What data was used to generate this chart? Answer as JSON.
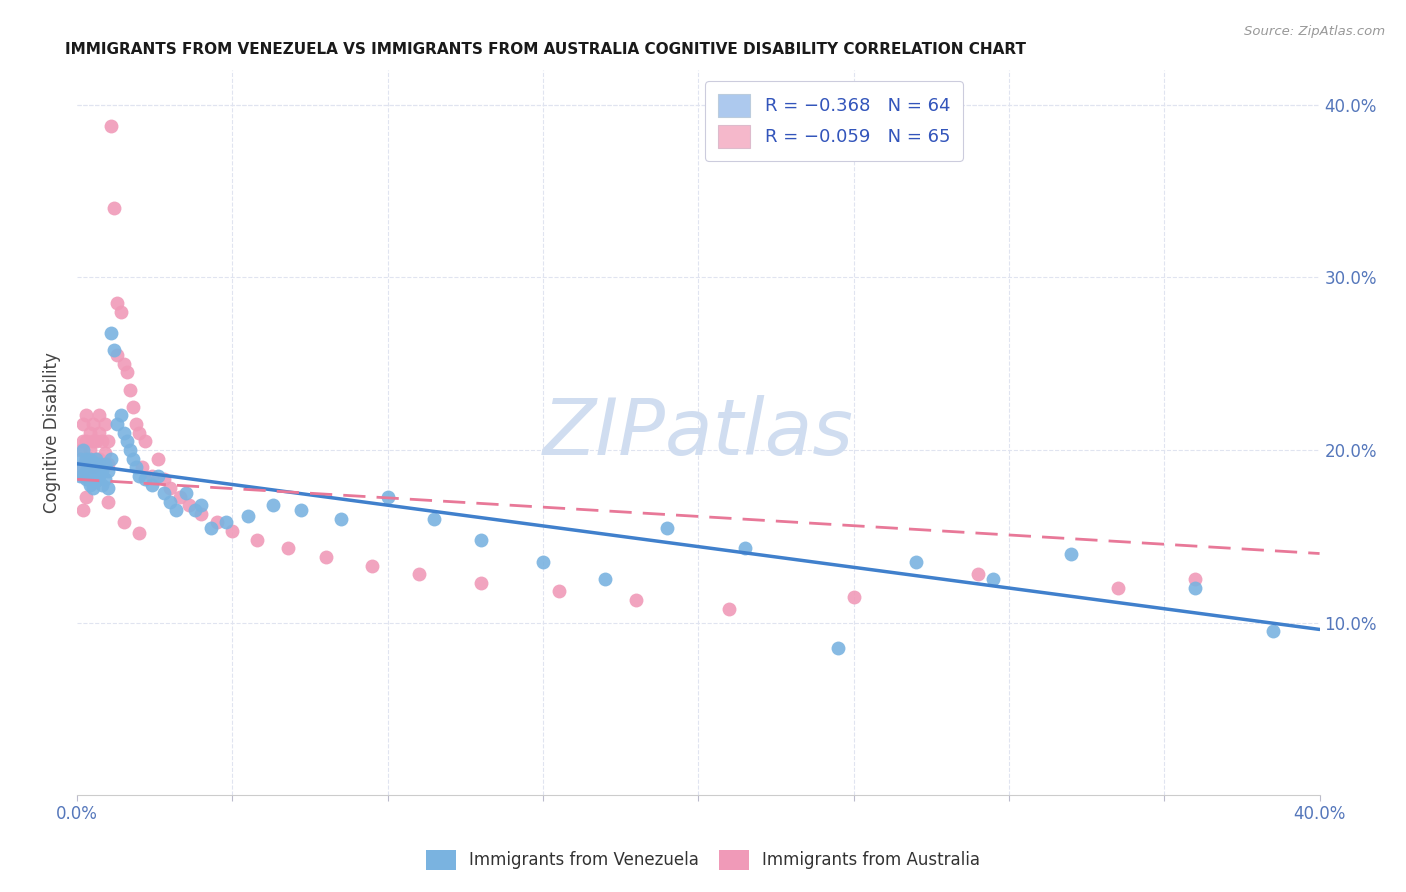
{
  "title": "IMMIGRANTS FROM VENEZUELA VS IMMIGRANTS FROM AUSTRALIA COGNITIVE DISABILITY CORRELATION CHART",
  "source": "Source: ZipAtlas.com",
  "ylabel": "Cognitive Disability",
  "xlim": [
    0.0,
    0.4
  ],
  "ylim": [
    0.0,
    0.42
  ],
  "ylabel_right_ticks": [
    "10.0%",
    "20.0%",
    "30.0%",
    "40.0%"
  ],
  "ylabel_right_vals": [
    0.1,
    0.2,
    0.3,
    0.4
  ],
  "legend_entry1_label": "R = −0.368   N = 64",
  "legend_entry2_label": "R = −0.059   N = 65",
  "legend_entry1_color": "#adc9ee",
  "legend_entry2_color": "#f5b8cb",
  "legend_label1": "Immigrants from Venezuela",
  "legend_label2": "Immigrants from Australia",
  "color_venezuela": "#7ab3e0",
  "color_australia": "#f09ab8",
  "line_color_venezuela": "#4080cc",
  "line_color_australia": "#e87898",
  "background_color": "#ffffff",
  "grid_color": "#e0e4f0",
  "watermark": "ZIPatlas",
  "watermark_color": "#d0ddf0",
  "ven_line_start_y": 0.192,
  "ven_line_end_y": 0.096,
  "aus_line_start_y": 0.183,
  "aus_line_end_y": 0.14,
  "venezuela_x": [
    0.001,
    0.001,
    0.002,
    0.002,
    0.002,
    0.003,
    0.003,
    0.003,
    0.004,
    0.004,
    0.004,
    0.005,
    0.005,
    0.005,
    0.006,
    0.006,
    0.006,
    0.007,
    0.007,
    0.008,
    0.008,
    0.009,
    0.009,
    0.01,
    0.01,
    0.011,
    0.011,
    0.012,
    0.013,
    0.014,
    0.015,
    0.016,
    0.017,
    0.018,
    0.019,
    0.02,
    0.022,
    0.024,
    0.026,
    0.028,
    0.03,
    0.032,
    0.035,
    0.038,
    0.04,
    0.043,
    0.048,
    0.055,
    0.063,
    0.072,
    0.085,
    0.1,
    0.115,
    0.13,
    0.15,
    0.17,
    0.19,
    0.215,
    0.245,
    0.27,
    0.295,
    0.32,
    0.36,
    0.385
  ],
  "venezuela_y": [
    0.185,
    0.195,
    0.185,
    0.19,
    0.2,
    0.183,
    0.188,
    0.195,
    0.18,
    0.188,
    0.195,
    0.178,
    0.185,
    0.193,
    0.182,
    0.188,
    0.195,
    0.185,
    0.192,
    0.18,
    0.188,
    0.183,
    0.192,
    0.178,
    0.188,
    0.195,
    0.268,
    0.258,
    0.215,
    0.22,
    0.21,
    0.205,
    0.2,
    0.195,
    0.19,
    0.185,
    0.183,
    0.18,
    0.185,
    0.175,
    0.17,
    0.165,
    0.175,
    0.165,
    0.168,
    0.155,
    0.158,
    0.162,
    0.168,
    0.165,
    0.16,
    0.173,
    0.16,
    0.148,
    0.135,
    0.125,
    0.155,
    0.143,
    0.085,
    0.135,
    0.125,
    0.14,
    0.12,
    0.095
  ],
  "australia_x": [
    0.001,
    0.001,
    0.002,
    0.002,
    0.002,
    0.003,
    0.003,
    0.003,
    0.004,
    0.004,
    0.004,
    0.005,
    0.005,
    0.005,
    0.006,
    0.006,
    0.007,
    0.007,
    0.007,
    0.008,
    0.008,
    0.009,
    0.009,
    0.01,
    0.01,
    0.011,
    0.012,
    0.013,
    0.013,
    0.014,
    0.015,
    0.016,
    0.017,
    0.018,
    0.019,
    0.02,
    0.021,
    0.022,
    0.024,
    0.026,
    0.028,
    0.03,
    0.033,
    0.036,
    0.04,
    0.045,
    0.05,
    0.058,
    0.068,
    0.08,
    0.095,
    0.11,
    0.13,
    0.155,
    0.18,
    0.21,
    0.25,
    0.29,
    0.335,
    0.36,
    0.002,
    0.003,
    0.01,
    0.015,
    0.02
  ],
  "australia_y": [
    0.19,
    0.2,
    0.205,
    0.215,
    0.185,
    0.195,
    0.205,
    0.22,
    0.195,
    0.21,
    0.2,
    0.19,
    0.205,
    0.215,
    0.195,
    0.205,
    0.195,
    0.21,
    0.22,
    0.193,
    0.205,
    0.198,
    0.215,
    0.192,
    0.205,
    0.388,
    0.34,
    0.285,
    0.255,
    0.28,
    0.25,
    0.245,
    0.235,
    0.225,
    0.215,
    0.21,
    0.19,
    0.205,
    0.185,
    0.195,
    0.183,
    0.178,
    0.173,
    0.168,
    0.163,
    0.158,
    0.153,
    0.148,
    0.143,
    0.138,
    0.133,
    0.128,
    0.123,
    0.118,
    0.113,
    0.108,
    0.115,
    0.128,
    0.12,
    0.125,
    0.165,
    0.173,
    0.17,
    0.158,
    0.152
  ]
}
